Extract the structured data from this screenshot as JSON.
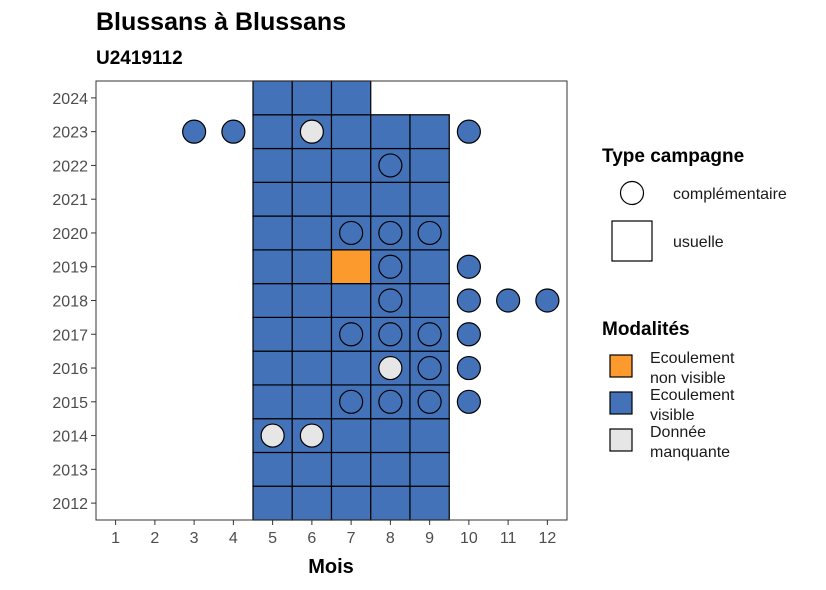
{
  "chart_data": {
    "type": "heatmap",
    "title": "Blussans à Blussans",
    "subtitle": "U2419112",
    "xlabel": "Mois",
    "ylabel": "",
    "x_ticks": [
      1,
      2,
      3,
      4,
      5,
      6,
      7,
      8,
      9,
      10,
      11,
      12
    ],
    "y_ticks": [
      2012,
      2013,
      2014,
      2015,
      2016,
      2017,
      2018,
      2019,
      2020,
      2021,
      2022,
      2023,
      2024
    ],
    "xlim": [
      0.5,
      12.5
    ],
    "ylim": [
      2011.5,
      2024.5
    ],
    "colors": {
      "Ecoulement non visible": "#fc9a2d",
      "Ecoulement visible": "#4472b8",
      "Donnée manquante": "#e6e6e6"
    },
    "legend_shape": {
      "title": "Type campagne",
      "items": [
        "complémentaire",
        "usuelle"
      ]
    },
    "legend_fill": {
      "title": "Modalités",
      "items": [
        {
          "lines": [
            "Ecoulement",
            "non visible"
          ],
          "key": "Ecoulement non visible"
        },
        {
          "lines": [
            "Ecoulement",
            "visible"
          ],
          "key": "Ecoulement visible"
        },
        {
          "lines": [
            "Donnée",
            "manquante"
          ],
          "key": "Donnée manquante"
        }
      ]
    },
    "tiles": [
      {
        "x": 5,
        "y": 2012,
        "m": "Ecoulement visible"
      },
      {
        "x": 6,
        "y": 2012,
        "m": "Ecoulement visible"
      },
      {
        "x": 7,
        "y": 2012,
        "m": "Ecoulement visible"
      },
      {
        "x": 8,
        "y": 2012,
        "m": "Ecoulement visible"
      },
      {
        "x": 9,
        "y": 2012,
        "m": "Ecoulement visible"
      },
      {
        "x": 5,
        "y": 2013,
        "m": "Ecoulement visible"
      },
      {
        "x": 6,
        "y": 2013,
        "m": "Ecoulement visible"
      },
      {
        "x": 7,
        "y": 2013,
        "m": "Ecoulement visible"
      },
      {
        "x": 8,
        "y": 2013,
        "m": "Ecoulement visible"
      },
      {
        "x": 9,
        "y": 2013,
        "m": "Ecoulement visible"
      },
      {
        "x": 5,
        "y": 2014,
        "m": "Ecoulement visible"
      },
      {
        "x": 6,
        "y": 2014,
        "m": "Ecoulement visible"
      },
      {
        "x": 7,
        "y": 2014,
        "m": "Ecoulement visible"
      },
      {
        "x": 8,
        "y": 2014,
        "m": "Ecoulement visible"
      },
      {
        "x": 9,
        "y": 2014,
        "m": "Ecoulement visible"
      },
      {
        "x": 5,
        "y": 2015,
        "m": "Ecoulement visible"
      },
      {
        "x": 6,
        "y": 2015,
        "m": "Ecoulement visible"
      },
      {
        "x": 7,
        "y": 2015,
        "m": "Ecoulement visible"
      },
      {
        "x": 8,
        "y": 2015,
        "m": "Ecoulement visible"
      },
      {
        "x": 9,
        "y": 2015,
        "m": "Ecoulement visible"
      },
      {
        "x": 5,
        "y": 2016,
        "m": "Ecoulement visible"
      },
      {
        "x": 6,
        "y": 2016,
        "m": "Ecoulement visible"
      },
      {
        "x": 7,
        "y": 2016,
        "m": "Ecoulement visible"
      },
      {
        "x": 8,
        "y": 2016,
        "m": "Ecoulement visible"
      },
      {
        "x": 9,
        "y": 2016,
        "m": "Ecoulement visible"
      },
      {
        "x": 5,
        "y": 2017,
        "m": "Ecoulement visible"
      },
      {
        "x": 6,
        "y": 2017,
        "m": "Ecoulement visible"
      },
      {
        "x": 7,
        "y": 2017,
        "m": "Ecoulement visible"
      },
      {
        "x": 8,
        "y": 2017,
        "m": "Ecoulement visible"
      },
      {
        "x": 9,
        "y": 2017,
        "m": "Ecoulement visible"
      },
      {
        "x": 5,
        "y": 2018,
        "m": "Ecoulement visible"
      },
      {
        "x": 6,
        "y": 2018,
        "m": "Ecoulement visible"
      },
      {
        "x": 7,
        "y": 2018,
        "m": "Ecoulement visible"
      },
      {
        "x": 8,
        "y": 2018,
        "m": "Ecoulement visible"
      },
      {
        "x": 9,
        "y": 2018,
        "m": "Ecoulement visible"
      },
      {
        "x": 5,
        "y": 2019,
        "m": "Ecoulement visible"
      },
      {
        "x": 6,
        "y": 2019,
        "m": "Ecoulement visible"
      },
      {
        "x": 7,
        "y": 2019,
        "m": "Ecoulement non visible"
      },
      {
        "x": 8,
        "y": 2019,
        "m": "Ecoulement visible"
      },
      {
        "x": 9,
        "y": 2019,
        "m": "Ecoulement visible"
      },
      {
        "x": 5,
        "y": 2020,
        "m": "Ecoulement visible"
      },
      {
        "x": 6,
        "y": 2020,
        "m": "Ecoulement visible"
      },
      {
        "x": 7,
        "y": 2020,
        "m": "Ecoulement visible"
      },
      {
        "x": 8,
        "y": 2020,
        "m": "Ecoulement visible"
      },
      {
        "x": 9,
        "y": 2020,
        "m": "Ecoulement visible"
      },
      {
        "x": 5,
        "y": 2021,
        "m": "Ecoulement visible"
      },
      {
        "x": 6,
        "y": 2021,
        "m": "Ecoulement visible"
      },
      {
        "x": 7,
        "y": 2021,
        "m": "Ecoulement visible"
      },
      {
        "x": 8,
        "y": 2021,
        "m": "Ecoulement visible"
      },
      {
        "x": 9,
        "y": 2021,
        "m": "Ecoulement visible"
      },
      {
        "x": 5,
        "y": 2022,
        "m": "Ecoulement visible"
      },
      {
        "x": 6,
        "y": 2022,
        "m": "Ecoulement visible"
      },
      {
        "x": 7,
        "y": 2022,
        "m": "Ecoulement visible"
      },
      {
        "x": 8,
        "y": 2022,
        "m": "Ecoulement visible"
      },
      {
        "x": 9,
        "y": 2022,
        "m": "Ecoulement visible"
      },
      {
        "x": 5,
        "y": 2023,
        "m": "Ecoulement visible"
      },
      {
        "x": 6,
        "y": 2023,
        "m": "Ecoulement visible"
      },
      {
        "x": 7,
        "y": 2023,
        "m": "Ecoulement visible"
      },
      {
        "x": 8,
        "y": 2023,
        "m": "Ecoulement visible"
      },
      {
        "x": 9,
        "y": 2023,
        "m": "Ecoulement visible"
      },
      {
        "x": 5,
        "y": 2024,
        "m": "Ecoulement visible"
      },
      {
        "x": 6,
        "y": 2024,
        "m": "Ecoulement visible"
      },
      {
        "x": 7,
        "y": 2024,
        "m": "Ecoulement visible"
      }
    ],
    "points": [
      {
        "x": 3,
        "y": 2023,
        "m": "Ecoulement visible"
      },
      {
        "x": 4,
        "y": 2023,
        "m": "Ecoulement visible"
      },
      {
        "x": 6,
        "y": 2023,
        "m": "Donnée manquante"
      },
      {
        "x": 10,
        "y": 2023,
        "m": "Ecoulement visible"
      },
      {
        "x": 8,
        "y": 2022,
        "m": "Ecoulement visible"
      },
      {
        "x": 7,
        "y": 2020,
        "m": "Ecoulement visible"
      },
      {
        "x": 8,
        "y": 2020,
        "m": "Ecoulement visible"
      },
      {
        "x": 9,
        "y": 2020,
        "m": "Ecoulement visible"
      },
      {
        "x": 8,
        "y": 2019,
        "m": "Ecoulement visible"
      },
      {
        "x": 10,
        "y": 2019,
        "m": "Ecoulement visible"
      },
      {
        "x": 8,
        "y": 2018,
        "m": "Ecoulement visible"
      },
      {
        "x": 10,
        "y": 2018,
        "m": "Ecoulement visible"
      },
      {
        "x": 11,
        "y": 2018,
        "m": "Ecoulement visible"
      },
      {
        "x": 12,
        "y": 2018,
        "m": "Ecoulement visible"
      },
      {
        "x": 7,
        "y": 2017,
        "m": "Ecoulement visible"
      },
      {
        "x": 8,
        "y": 2017,
        "m": "Ecoulement visible"
      },
      {
        "x": 9,
        "y": 2017,
        "m": "Ecoulement visible"
      },
      {
        "x": 10,
        "y": 2017,
        "m": "Ecoulement visible"
      },
      {
        "x": 8,
        "y": 2016,
        "m": "Donnée manquante"
      },
      {
        "x": 9,
        "y": 2016,
        "m": "Ecoulement visible"
      },
      {
        "x": 10,
        "y": 2016,
        "m": "Ecoulement visible"
      },
      {
        "x": 7,
        "y": 2015,
        "m": "Ecoulement visible"
      },
      {
        "x": 8,
        "y": 2015,
        "m": "Ecoulement visible"
      },
      {
        "x": 9,
        "y": 2015,
        "m": "Ecoulement visible"
      },
      {
        "x": 10,
        "y": 2015,
        "m": "Ecoulement visible"
      },
      {
        "x": 5,
        "y": 2014,
        "m": "Donnée manquante"
      },
      {
        "x": 6,
        "y": 2014,
        "m": "Donnée manquante"
      }
    ]
  }
}
